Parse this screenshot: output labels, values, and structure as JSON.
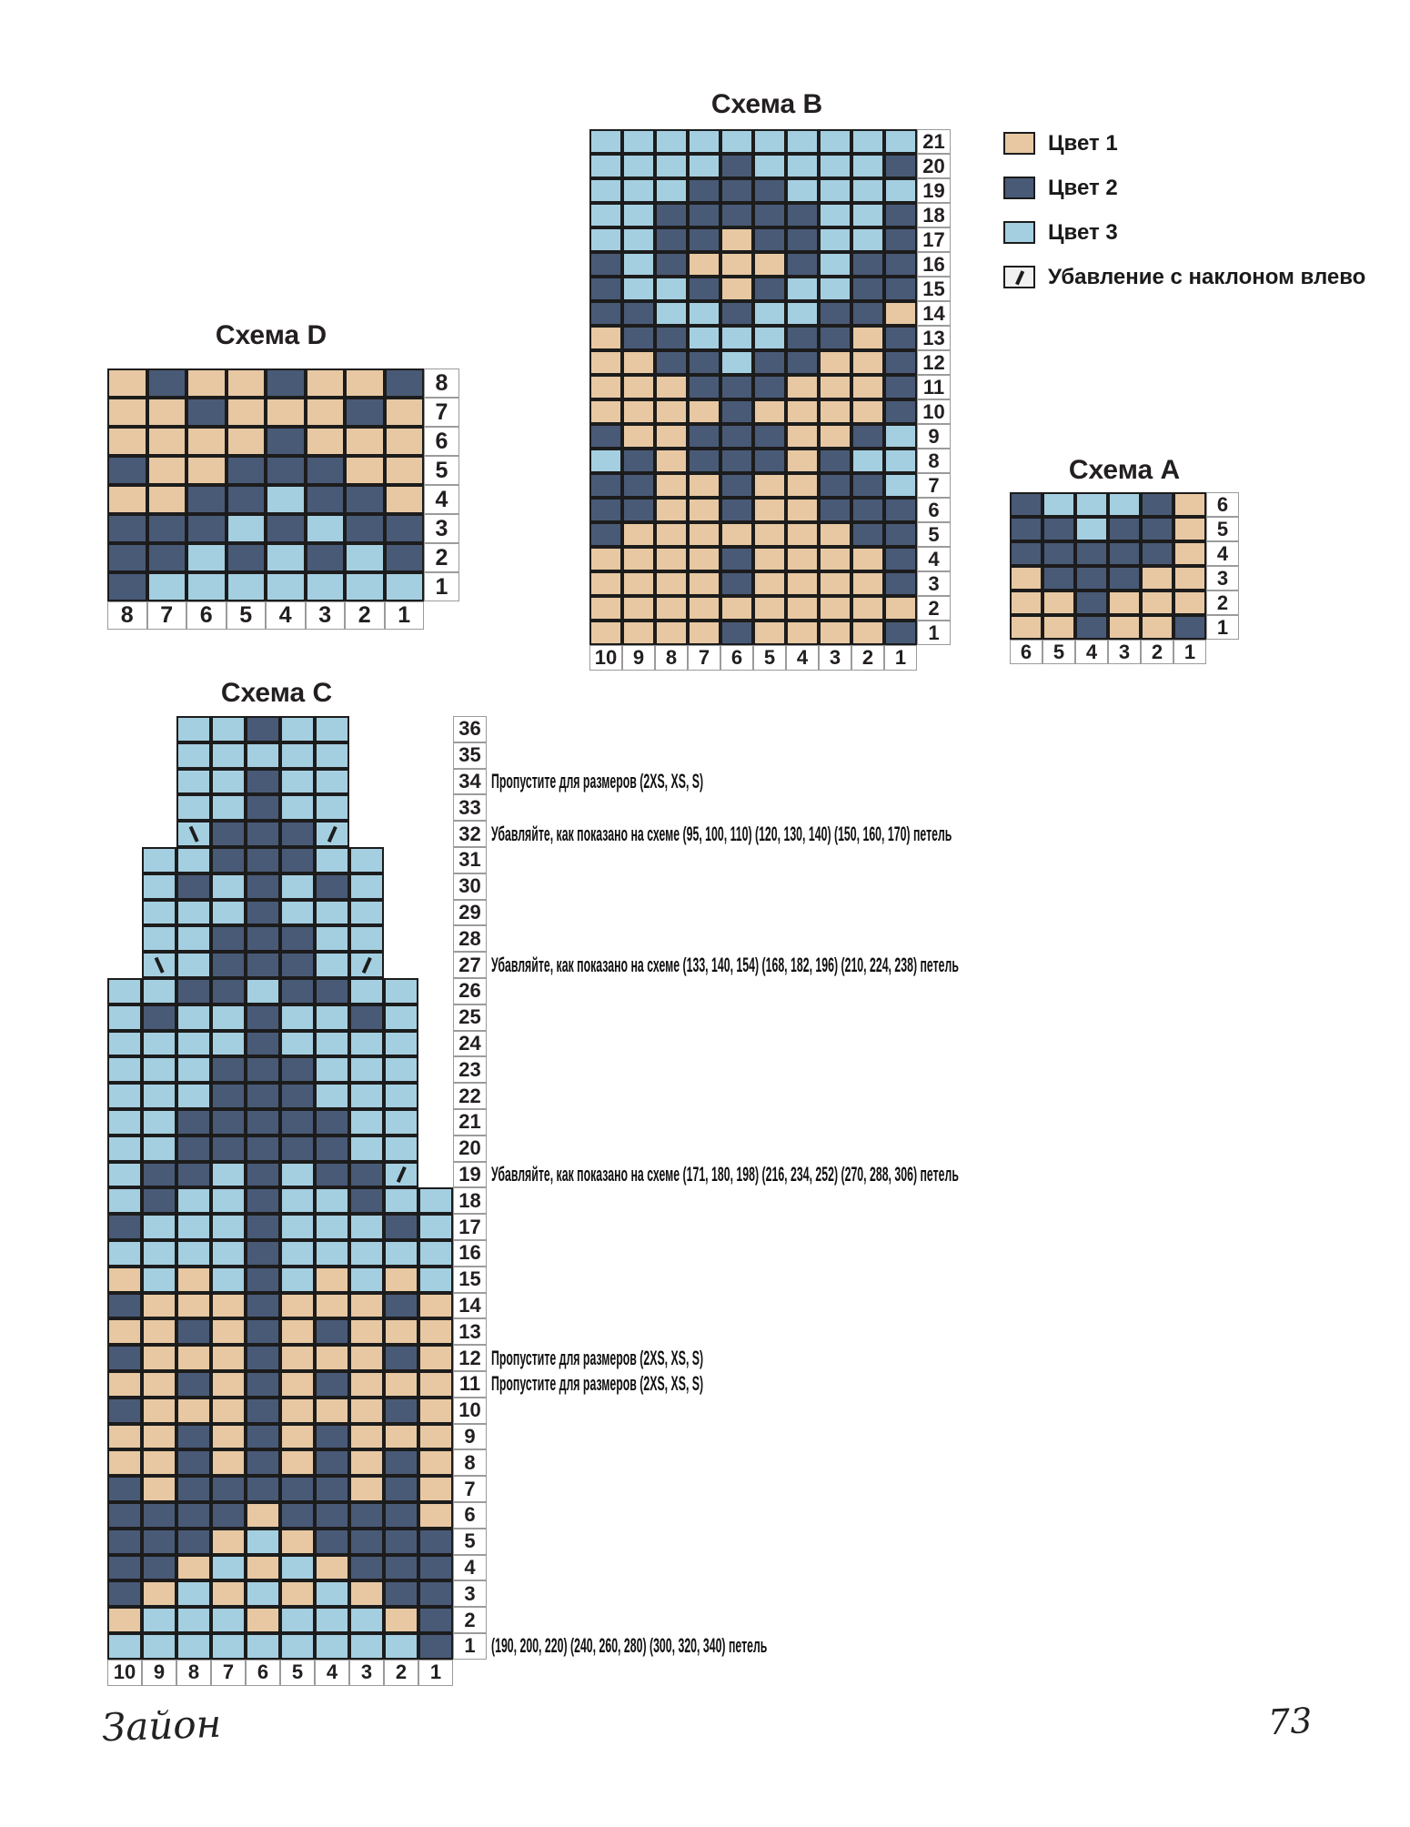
{
  "page": {
    "signature": "Зайон",
    "page_number": "73"
  },
  "colors": {
    "color1": "#e7c8a2",
    "color2": "#495a77",
    "color3": "#a4cfe0",
    "grid_line": "#1c1c1c",
    "number_box_border": "#9b9b9b",
    "symbol_box_bg": "#f1f1f1"
  },
  "legend": {
    "items": [
      {
        "kind": "color1",
        "label": "Цвет 1"
      },
      {
        "kind": "color2",
        "label": "Цвет 2"
      },
      {
        "kind": "color3",
        "label": "Цвет 3"
      },
      {
        "kind": "symbol",
        "symbol": "\\",
        "label": "Убавление с наклоном влево"
      }
    ]
  },
  "charts": [
    {
      "id": "B",
      "title": "Схема B",
      "col_numbers": [
        "10",
        "9",
        "8",
        "7",
        "6",
        "5",
        "4",
        "3",
        "2",
        "1"
      ],
      "rows": [
        {
          "num": "21",
          "offset": 0,
          "cells": "3333333333"
        },
        {
          "num": "20",
          "offset": 0,
          "cells": "3333233332"
        },
        {
          "num": "19",
          "offset": 0,
          "cells": "3332223333"
        },
        {
          "num": "18",
          "offset": 0,
          "cells": "3322222332"
        },
        {
          "num": "17",
          "offset": 0,
          "cells": "3322122332"
        },
        {
          "num": "16",
          "offset": 0,
          "cells": "2321112322"
        },
        {
          "num": "15",
          "offset": 0,
          "cells": "2332123322"
        },
        {
          "num": "14",
          "offset": 0,
          "cells": "2233233221"
        },
        {
          "num": "13",
          "offset": 0,
          "cells": "1223332212"
        },
        {
          "num": "12",
          "offset": 0,
          "cells": "1122322112"
        },
        {
          "num": "11",
          "offset": 0,
          "cells": "1112221112"
        },
        {
          "num": "10",
          "offset": 0,
          "cells": "1111211112"
        },
        {
          "num": "9",
          "offset": 0,
          "cells": "2112221123"
        },
        {
          "num": "8",
          "offset": 0,
          "cells": "3212221233"
        },
        {
          "num": "7",
          "offset": 0,
          "cells": "2211211223"
        },
        {
          "num": "6",
          "offset": 0,
          "cells": "2211211222"
        },
        {
          "num": "5",
          "offset": 0,
          "cells": "2111111122"
        },
        {
          "num": "4",
          "offset": 0,
          "cells": "1111211112"
        },
        {
          "num": "3",
          "offset": 0,
          "cells": "1111211112"
        },
        {
          "num": "2",
          "offset": 0,
          "cells": "1111111111"
        },
        {
          "num": "1",
          "offset": 0,
          "cells": "1111211112"
        }
      ]
    },
    {
      "id": "D",
      "title": "Схема D",
      "col_numbers": [
        "8",
        "7",
        "6",
        "5",
        "4",
        "3",
        "2",
        "1"
      ],
      "rows": [
        {
          "num": "8",
          "offset": 0,
          "cells": "12112112"
        },
        {
          "num": "7",
          "offset": 0,
          "cells": "11211121"
        },
        {
          "num": "6",
          "offset": 0,
          "cells": "11112111"
        },
        {
          "num": "5",
          "offset": 0,
          "cells": "21122211"
        },
        {
          "num": "4",
          "offset": 0,
          "cells": "11223221"
        },
        {
          "num": "3",
          "offset": 0,
          "cells": "22232322"
        },
        {
          "num": "2",
          "offset": 0,
          "cells": "22323232"
        },
        {
          "num": "1",
          "offset": 0,
          "cells": "23333333"
        }
      ]
    },
    {
      "id": "A",
      "title": "Схема A",
      "col_numbers": [
        "6",
        "5",
        "4",
        "3",
        "2",
        "1"
      ],
      "rows": [
        {
          "num": "6",
          "offset": 0,
          "cells": "233321"
        },
        {
          "num": "5",
          "offset": 0,
          "cells": "223221"
        },
        {
          "num": "4",
          "offset": 0,
          "cells": "222221"
        },
        {
          "num": "3",
          "offset": 0,
          "cells": "122211"
        },
        {
          "num": "2",
          "offset": 0,
          "cells": "112111"
        },
        {
          "num": "1",
          "offset": 0,
          "cells": "112112"
        }
      ]
    },
    {
      "id": "C",
      "title": "Схема C",
      "col_numbers": [
        "10",
        "9",
        "8",
        "7",
        "6",
        "5",
        "4",
        "3",
        "2",
        "1"
      ],
      "rows": [
        {
          "num": "36",
          "offset": 2,
          "cells": "33233"
        },
        {
          "num": "35",
          "offset": 2,
          "cells": "33333"
        },
        {
          "num": "34",
          "offset": 2,
          "cells": "33233",
          "annotation": "Пропустите для размеров (2XS, XS, S)"
        },
        {
          "num": "33",
          "offset": 2,
          "cells": "33233"
        },
        {
          "num": "32",
          "offset": 2,
          "cells": "/222\\",
          "annotation": "Убавляйте, как показано на схеме (95, 100, 110) (120, 130, 140) (150, 160, 170) петель"
        },
        {
          "num": "31",
          "offset": 1,
          "cells": "3322233"
        },
        {
          "num": "30",
          "offset": 1,
          "cells": "3232323"
        },
        {
          "num": "29",
          "offset": 1,
          "cells": "3332333"
        },
        {
          "num": "28",
          "offset": 1,
          "cells": "3322233"
        },
        {
          "num": "27",
          "offset": 1,
          "cells": "/32223\\",
          "annotation": "Убавляйте, как показано на схеме (133, 140, 154) (168, 182, 196) (210, 224, 238) петель"
        },
        {
          "num": "26",
          "offset": 0,
          "cells": "332232233"
        },
        {
          "num": "25",
          "offset": 0,
          "cells": "323323323"
        },
        {
          "num": "24",
          "offset": 0,
          "cells": "333323333"
        },
        {
          "num": "23",
          "offset": 0,
          "cells": "333222333"
        },
        {
          "num": "22",
          "offset": 0,
          "cells": "333222333"
        },
        {
          "num": "21",
          "offset": 0,
          "cells": "332222233"
        },
        {
          "num": "20",
          "offset": 0,
          "cells": "332222233"
        },
        {
          "num": "19",
          "offset": 0,
          "cells": "32232322\\",
          "annotation": "Убавляйте, как показано на схеме (171, 180, 198) (216, 234, 252) (270, 288, 306) петель"
        },
        {
          "num": "18",
          "offset": 0,
          "cells": "3233233233"
        },
        {
          "num": "17",
          "offset": 0,
          "cells": "2333233323"
        },
        {
          "num": "16",
          "offset": 0,
          "cells": "3333233333"
        },
        {
          "num": "15",
          "offset": 0,
          "cells": "1313231313"
        },
        {
          "num": "14",
          "offset": 0,
          "cells": "2111211121"
        },
        {
          "num": "13",
          "offset": 0,
          "cells": "1121212111"
        },
        {
          "num": "12",
          "offset": 0,
          "cells": "2111211121",
          "annotation": "Пропустите для размеров (2XS, XS, S)"
        },
        {
          "num": "11",
          "offset": 0,
          "cells": "1121212111",
          "annotation": "Пропустите для размеров (2XS, XS, S)"
        },
        {
          "num": "10",
          "offset": 0,
          "cells": "2111211121"
        },
        {
          "num": "9",
          "offset": 0,
          "cells": "1121212111"
        },
        {
          "num": "8",
          "offset": 0,
          "cells": "1121212121"
        },
        {
          "num": "7",
          "offset": 0,
          "cells": "2122222121"
        },
        {
          "num": "6",
          "offset": 0,
          "cells": "2222122221"
        },
        {
          "num": "5",
          "offset": 0,
          "cells": "2221312222"
        },
        {
          "num": "4",
          "offset": 0,
          "cells": "2213131222"
        },
        {
          "num": "3",
          "offset": 0,
          "cells": "2131313122"
        },
        {
          "num": "2",
          "offset": 0,
          "cells": "1333133312"
        },
        {
          "num": "1",
          "offset": 0,
          "cells": "3333333332",
          "annotation": "(190, 200, 220) (240, 260, 280) (300, 320, 340) петель"
        }
      ]
    }
  ]
}
